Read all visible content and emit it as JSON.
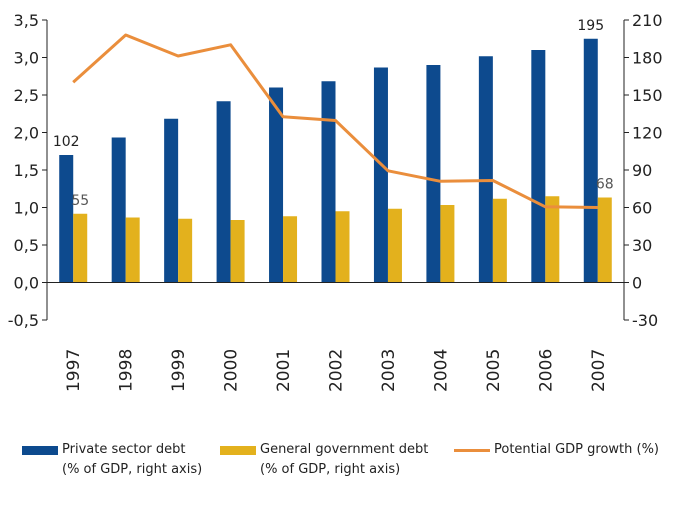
{
  "chart_data": {
    "type": "bar",
    "categories": [
      "1997",
      "1998",
      "1999",
      "2000",
      "2001",
      "2002",
      "2003",
      "2004",
      "2005",
      "2006",
      "2007"
    ],
    "left_axis": {
      "ylim": [
        -0.5,
        3.5
      ],
      "ticks": [
        "-0,5",
        "0,0",
        "0,5",
        "1,0",
        "1,5",
        "2,0",
        "2,5",
        "3,0",
        "3,5"
      ]
    },
    "right_axis": {
      "ylim": [
        -30,
        210
      ],
      "ticks": [
        "-30",
        "0",
        "30",
        "60",
        "90",
        "120",
        "150",
        "180",
        "210"
      ]
    },
    "series": [
      {
        "name": "Private sector debt",
        "name_line2": "(% of GDP, right axis)",
        "type": "bar",
        "axis": "right",
        "color": "#0d4a8e",
        "values": [
          102,
          116,
          131,
          145,
          156,
          161,
          172,
          174,
          181,
          186,
          195
        ]
      },
      {
        "name": "General government debt",
        "name_line2": "(% of GDP, right axis)",
        "type": "bar",
        "axis": "right",
        "color": "#e3b11d",
        "values": [
          55,
          52,
          51,
          50,
          53,
          57,
          59,
          62,
          67,
          69,
          68
        ]
      },
      {
        "name": "Potential GDP growth (%)",
        "type": "line",
        "axis": "left",
        "color": "#ea8e3c",
        "values": [
          2.67,
          3.3,
          3.02,
          3.17,
          2.21,
          2.16,
          1.49,
          1.35,
          1.36,
          1.01,
          1.0
        ]
      }
    ],
    "data_labels": [
      {
        "series": 0,
        "index": 0,
        "text": "102"
      },
      {
        "series": 1,
        "index": 0,
        "text": "55"
      },
      {
        "series": 0,
        "index": 10,
        "text": "195"
      },
      {
        "series": 1,
        "index": 10,
        "text": "68"
      }
    ],
    "grid": false,
    "legend_position": "bottom"
  }
}
